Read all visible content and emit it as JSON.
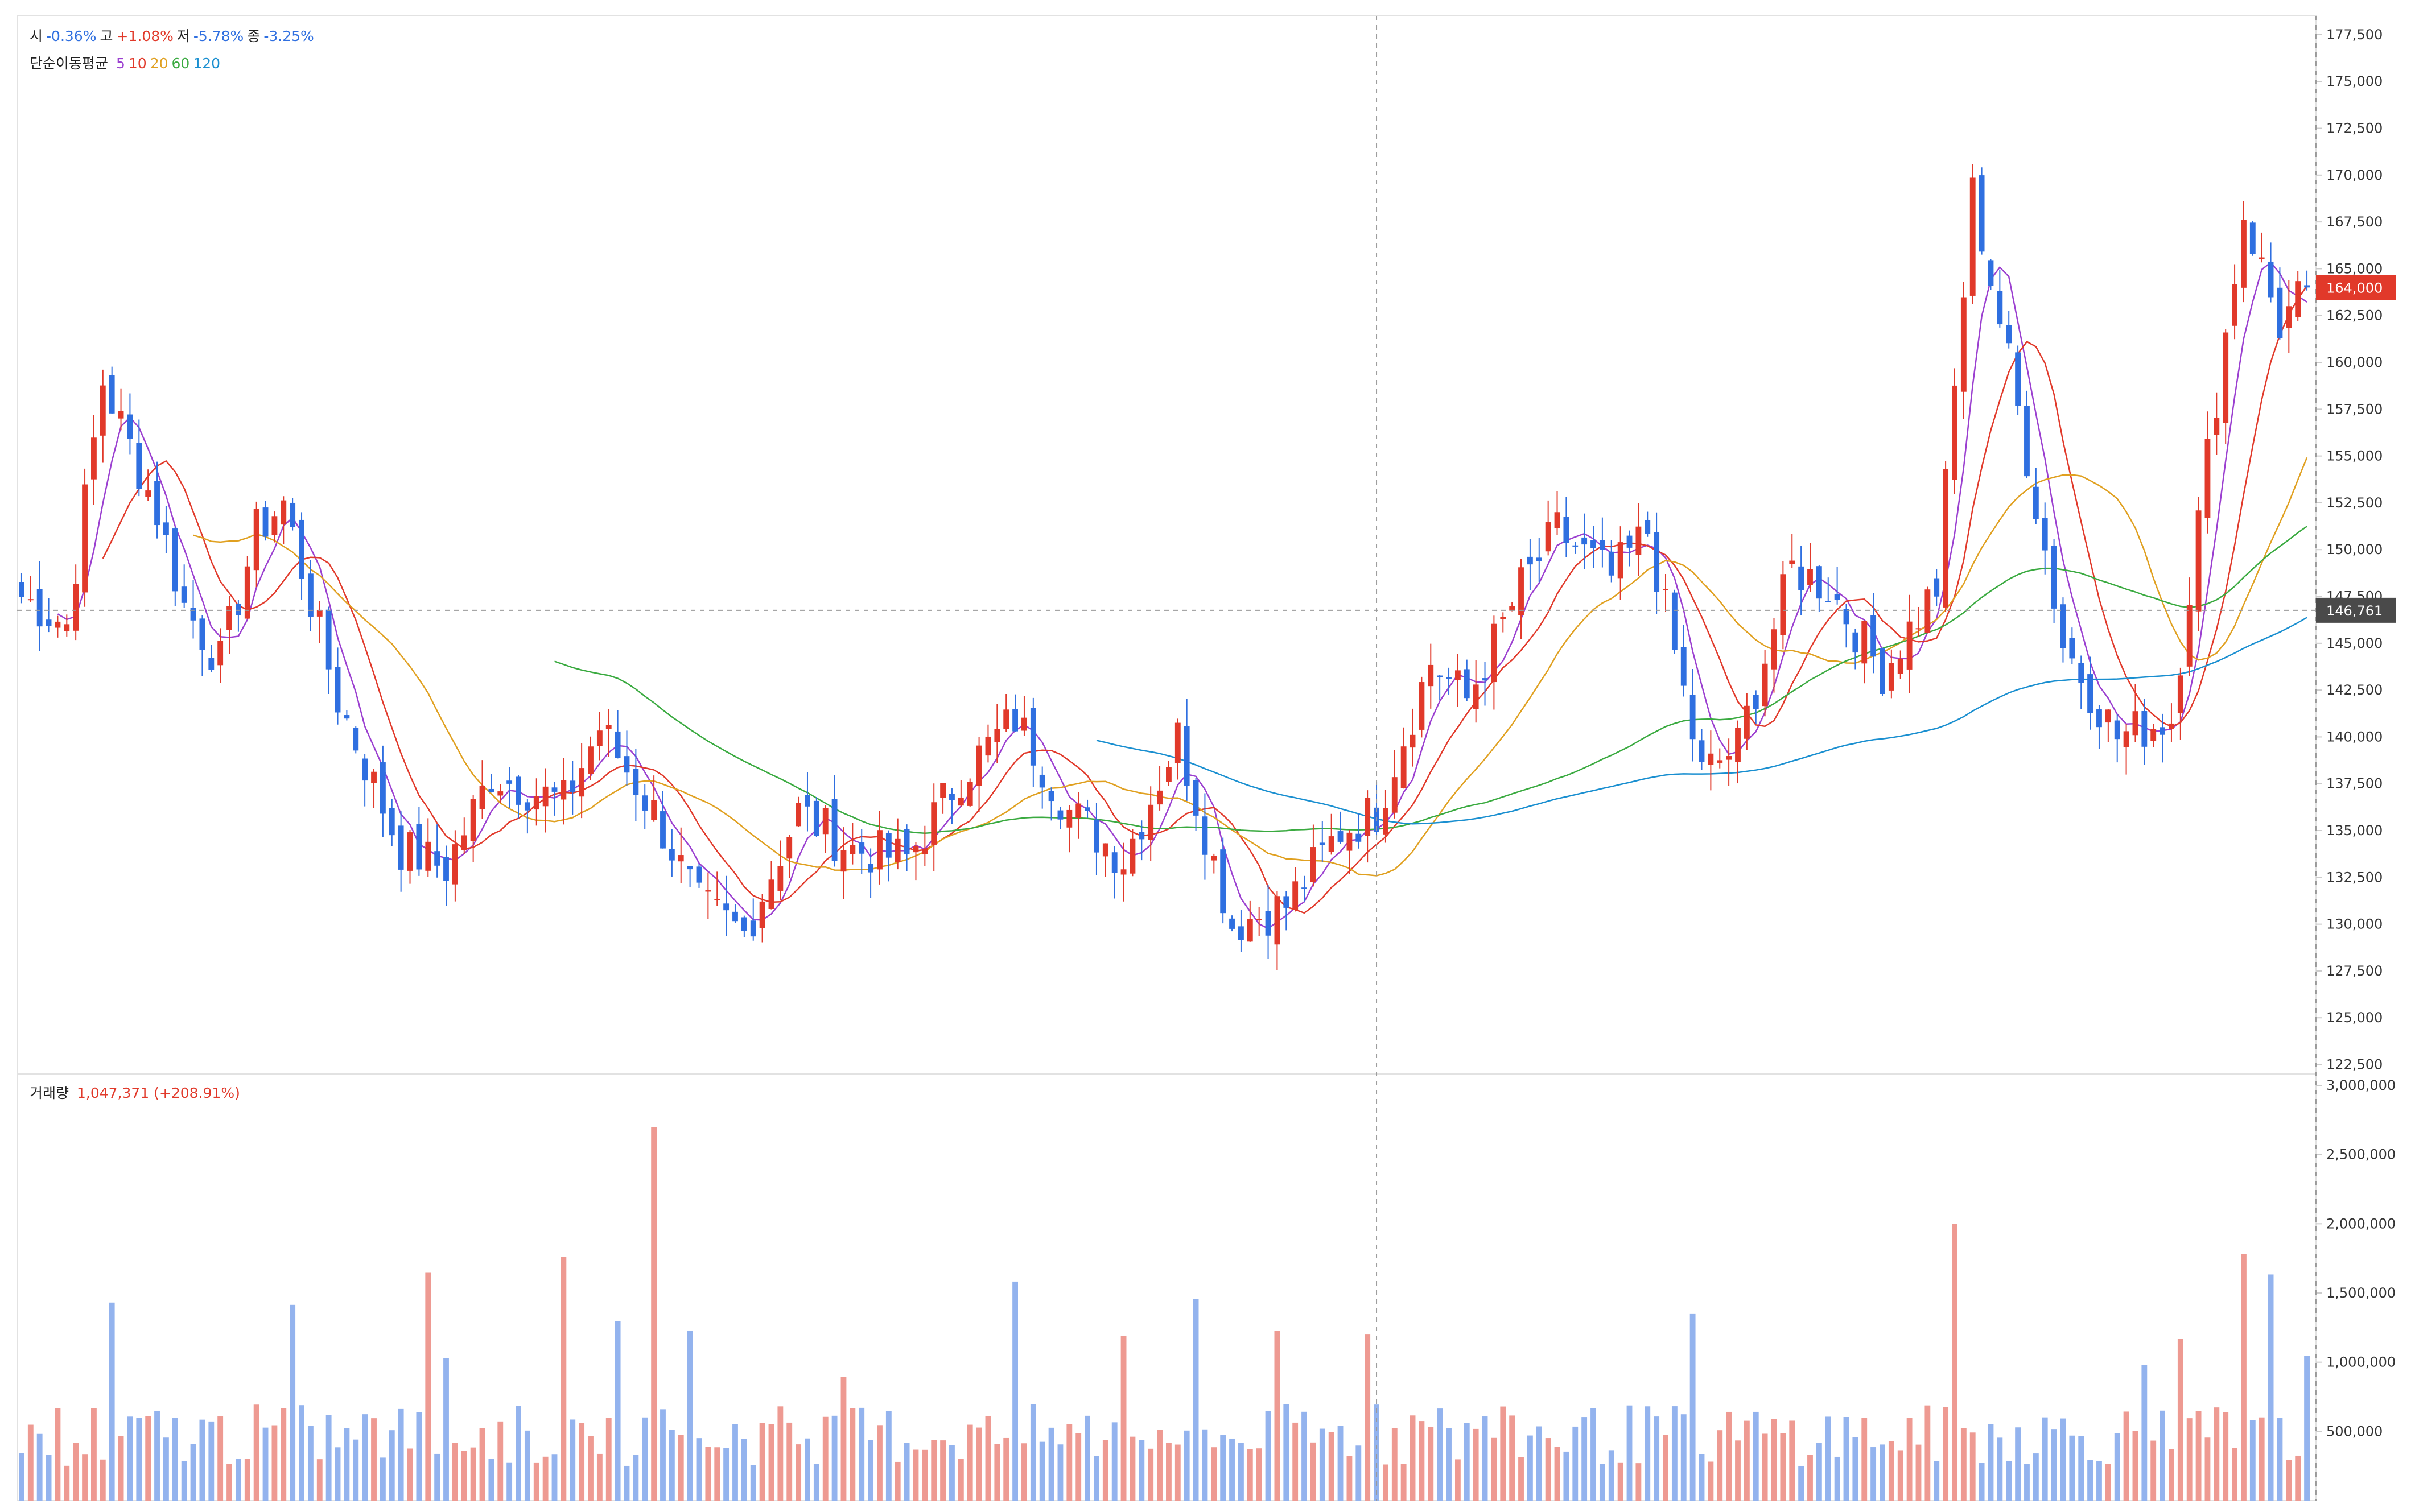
{
  "header": {
    "ohlc": [
      {
        "label": "시",
        "value": "-0.36%",
        "dir": "down"
      },
      {
        "label": "고",
        "value": "+1.08%",
        "dir": "up"
      },
      {
        "label": "저",
        "value": "-5.78%",
        "dir": "down"
      },
      {
        "label": "종",
        "value": "-3.25%",
        "dir": "down"
      }
    ],
    "ma_title": "단순이동평균",
    "ma_periods": [
      {
        "label": "5",
        "color": "#9b3fd0"
      },
      {
        "label": "10",
        "color": "#e1392a"
      },
      {
        "label": "20",
        "color": "#e0a020"
      },
      {
        "label": "60",
        "color": "#3aaa40"
      },
      {
        "label": "120",
        "color": "#1a8fd0"
      }
    ]
  },
  "volume_header": {
    "label": "거래량",
    "value": "1,047,371 (+208.91%)"
  },
  "colors": {
    "up": "#e1392a",
    "down": "#2f6fe0",
    "vol_up": "#ee9a92",
    "vol_down": "#93b3ee",
    "neutral": "#888888"
  },
  "chart_data": [
    {
      "type": "candlestick",
      "yticks": [
        "122,500",
        "125,000",
        "127,500",
        "130,000",
        "132,500",
        "135,000",
        "137,500",
        "140,000",
        "142,500",
        "145,000",
        "147,500",
        "150,000",
        "152,500",
        "155,000",
        "157,500",
        "160,000",
        "162,500",
        "165,000",
        "167,500",
        "170,000",
        "172,500",
        "175,000",
        "177,500"
      ],
      "ylim": [
        122000,
        178500
      ],
      "current_price_label": "164,000",
      "crosshair_price_label": "146,761",
      "crosshair_price": 146761,
      "waypoints": [
        [
          0,
          147500
        ],
        [
          5,
          146000
        ],
        [
          9,
          159000
        ],
        [
          15,
          152000
        ],
        [
          18,
          147000
        ],
        [
          22,
          144000
        ],
        [
          26,
          151000
        ],
        [
          29,
          152500
        ],
        [
          35,
          142000
        ],
        [
          42,
          134000
        ],
        [
          47,
          133000
        ],
        [
          52,
          138000
        ],
        [
          60,
          136500
        ],
        [
          64,
          140500
        ],
        [
          70,
          136000
        ],
        [
          75,
          131000
        ],
        [
          80,
          129500
        ],
        [
          86,
          136000
        ],
        [
          92,
          134000
        ],
        [
          98,
          133500
        ],
        [
          104,
          138000
        ],
        [
          110,
          141000
        ],
        [
          116,
          136000
        ],
        [
          122,
          133500
        ],
        [
          128,
          140000
        ],
        [
          134,
          130000
        ],
        [
          140,
          131000
        ],
        [
          146,
          135000
        ],
        [
          150,
          136000
        ],
        [
          156,
          144000
        ],
        [
          160,
          142000
        ],
        [
          166,
          148000
        ],
        [
          170,
          151000
        ],
        [
          176,
          148500
        ],
        [
          180,
          151000
        ],
        [
          186,
          138000
        ],
        [
          190,
          139500
        ],
        [
          196,
          149000
        ],
        [
          200,
          148000
        ],
        [
          206,
          143500
        ],
        [
          212,
          148000
        ],
        [
          216,
          169000
        ],
        [
          220,
          160000
        ],
        [
          226,
          145000
        ],
        [
          232,
          140000
        ],
        [
          238,
          141000
        ],
        [
          242,
          155000
        ],
        [
          246,
          168000
        ],
        [
          250,
          162000
        ],
        [
          253,
          164000
        ]
      ],
      "series": [
        {
          "name": "5",
          "color": "#9b3fd0"
        },
        {
          "name": "10",
          "color": "#e1392a"
        },
        {
          "name": "20",
          "color": "#e0a020"
        },
        {
          "name": "60",
          "color": "#3aaa40"
        },
        {
          "name": "120",
          "color": "#1a8fd0"
        }
      ]
    },
    {
      "type": "bar",
      "yticks": [
        "500,000",
        "1,000,000",
        "1,500,000",
        "2,000,000",
        "2,500,000",
        "3,000,000"
      ],
      "ylim": [
        0,
        3000000
      ]
    }
  ]
}
